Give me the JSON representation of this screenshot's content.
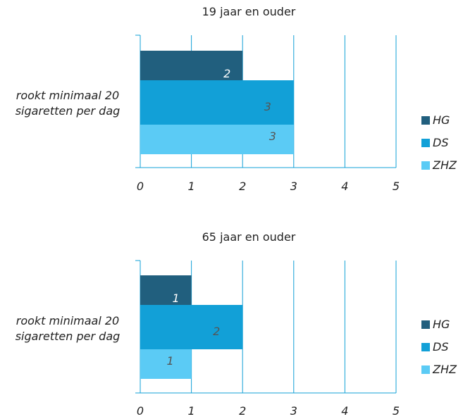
{
  "chart_data": [
    {
      "type": "bar",
      "orientation": "horizontal",
      "title": "19 jaar en ouder",
      "categories": [
        "rookt minimaal 20\nsigaretten per dag"
      ],
      "series": [
        {
          "name": "HG",
          "values": [
            2
          ],
          "color": "#215f7e"
        },
        {
          "name": "DS",
          "values": [
            3
          ],
          "color": "#12a0d7"
        },
        {
          "name": "ZHZ",
          "values": [
            3
          ],
          "color": "#5bcbf5"
        }
      ],
      "xlim": [
        0,
        5
      ],
      "xticks": [
        0,
        1,
        2,
        3,
        4,
        5
      ],
      "grid": true,
      "legend": "right",
      "label_colors": {
        "HG": "#ffffff",
        "DS": "#555555",
        "ZHZ": "#555555"
      }
    },
    {
      "type": "bar",
      "orientation": "horizontal",
      "title": "65 jaar en ouder",
      "categories": [
        "rookt minimaal 20\nsigaretten per dag"
      ],
      "series": [
        {
          "name": "HG",
          "values": [
            1
          ],
          "color": "#215f7e"
        },
        {
          "name": "DS",
          "values": [
            2
          ],
          "color": "#12a0d7"
        },
        {
          "name": "ZHZ",
          "values": [
            1
          ],
          "color": "#5bcbf5"
        }
      ],
      "xlim": [
        0,
        5
      ],
      "xticks": [
        0,
        1,
        2,
        3,
        4,
        5
      ],
      "grid": true,
      "legend": "right",
      "label_colors": {
        "HG": "#ffffff",
        "DS": "#555555",
        "ZHZ": "#555555"
      }
    }
  ]
}
